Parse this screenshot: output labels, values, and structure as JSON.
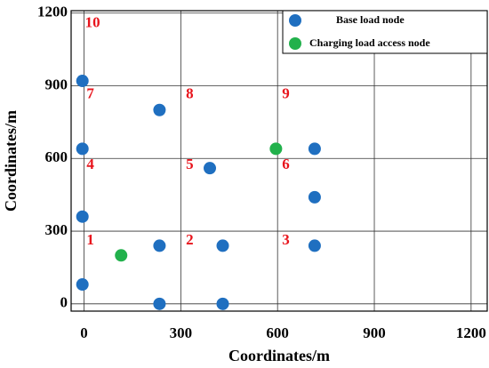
{
  "chart_data": {
    "type": "scatter",
    "xlabel": "Coordinates/m",
    "ylabel": "Coordinates/m",
    "xlim": [
      -40,
      1250
    ],
    "ylim": [
      -30,
      1210
    ],
    "xticks": [
      0,
      300,
      600,
      900,
      1200
    ],
    "yticks": [
      0,
      300,
      600,
      900,
      1200
    ],
    "grid": true,
    "legend": "upper right",
    "series": [
      {
        "name": "Base load node",
        "color": "#1f6fc0",
        "x": [
          -5,
          234,
          -5,
          390,
          715,
          715,
          -5,
          234,
          430,
          715,
          -5,
          234,
          430
        ],
        "y": [
          920,
          800,
          640,
          560,
          640,
          440,
          360,
          240,
          240,
          240,
          80,
          0,
          0
        ]
      },
      {
        "name": "Charging load access node",
        "color": "#22b14c",
        "x": [
          115,
          595
        ],
        "y": [
          200,
          640
        ]
      }
    ],
    "annotations": [
      {
        "text": "10",
        "x": 3,
        "y": 1156
      },
      {
        "text": "7",
        "x": 8,
        "y": 863
      },
      {
        "text": "8",
        "x": 316,
        "y": 863
      },
      {
        "text": "9",
        "x": 614,
        "y": 863
      },
      {
        "text": "4",
        "x": 8,
        "y": 571
      },
      {
        "text": "5",
        "x": 316,
        "y": 571
      },
      {
        "text": "6",
        "x": 614,
        "y": 571
      },
      {
        "text": "1",
        "x": 8,
        "y": 260
      },
      {
        "text": "2",
        "x": 316,
        "y": 260
      },
      {
        "text": "3",
        "x": 614,
        "y": 260
      }
    ]
  }
}
